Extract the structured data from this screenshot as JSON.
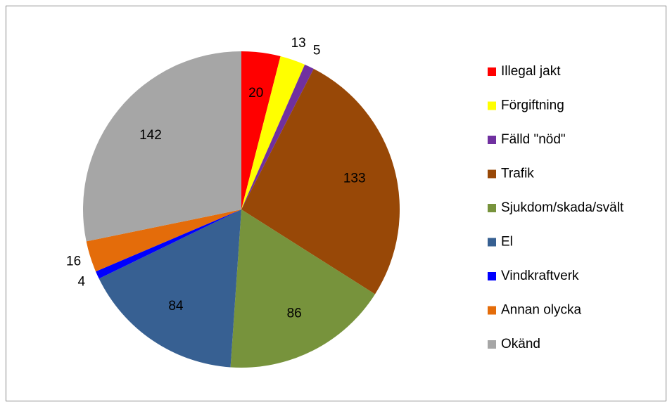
{
  "chart_data": {
    "type": "pie",
    "categories": [
      "Illegal jakt",
      "Förgiftning",
      "Fälld \"nöd\"",
      "Trafik",
      "Sjukdom/skada/svält",
      "El",
      "Vindkraftverk",
      "Annan olycka",
      "Okänd"
    ],
    "values": [
      20,
      13,
      5,
      133,
      86,
      84,
      4,
      16,
      142
    ],
    "colors": [
      "#ff0000",
      "#ffff00",
      "#7030a0",
      "#984807",
      "#77933c",
      "#376092",
      "#0000ff",
      "#e46c0a",
      "#a6a6a6"
    ],
    "legend": "right"
  }
}
